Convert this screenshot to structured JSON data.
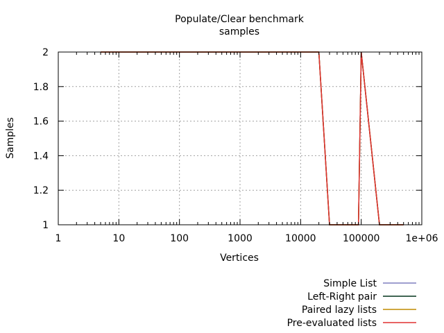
{
  "chart_data": {
    "type": "line",
    "title": "Populate/Clear benchmark",
    "subtitle": "samples",
    "xlabel": "Vertices",
    "ylabel": "Samples",
    "x_scale": "log",
    "xlim": [
      1,
      1000000
    ],
    "ylim": [
      1,
      2
    ],
    "x_ticks": [
      {
        "value": 1,
        "label": "1"
      },
      {
        "value": 10,
        "label": "10"
      },
      {
        "value": 100,
        "label": "100"
      },
      {
        "value": 1000,
        "label": "1000"
      },
      {
        "value": 10000,
        "label": "10000"
      },
      {
        "value": 100000,
        "label": "100000"
      },
      {
        "value": 1000000,
        "label": "1e+06"
      }
    ],
    "y_ticks": [
      {
        "value": 1,
        "label": "1"
      },
      {
        "value": 1.2,
        "label": "1.2"
      },
      {
        "value": 1.4,
        "label": "1.4"
      },
      {
        "value": 1.6,
        "label": "1.6"
      },
      {
        "value": 1.8,
        "label": "1.8"
      },
      {
        "value": 2,
        "label": "2"
      }
    ],
    "grid": true,
    "legend_position": "bottom-right",
    "series": [
      {
        "name": "Simple List",
        "color": "#7f7fbf",
        "x": [
          5,
          20000,
          30000,
          90000,
          100000,
          200000,
          500000
        ],
        "y": [
          2,
          2,
          1,
          1,
          2,
          1,
          1
        ]
      },
      {
        "name": "Left-Right pair",
        "color": "#00331a",
        "x": [
          5,
          20000,
          30000,
          90000,
          100000,
          200000,
          500000
        ],
        "y": [
          2,
          2,
          1,
          1,
          2,
          1,
          1
        ]
      },
      {
        "name": "Paired lazy lists",
        "color": "#bf8c00",
        "x": [
          5,
          20000,
          30000,
          90000,
          100000,
          200000,
          500000
        ],
        "y": [
          2,
          2,
          1,
          1,
          2,
          1,
          1
        ]
      },
      {
        "name": "Pre-evaluated lists",
        "color": "#e03030",
        "x": [
          5,
          20000,
          30000,
          90000,
          100000,
          200000,
          500000
        ],
        "y": [
          2,
          2,
          1,
          1,
          2,
          1,
          1
        ]
      }
    ]
  }
}
